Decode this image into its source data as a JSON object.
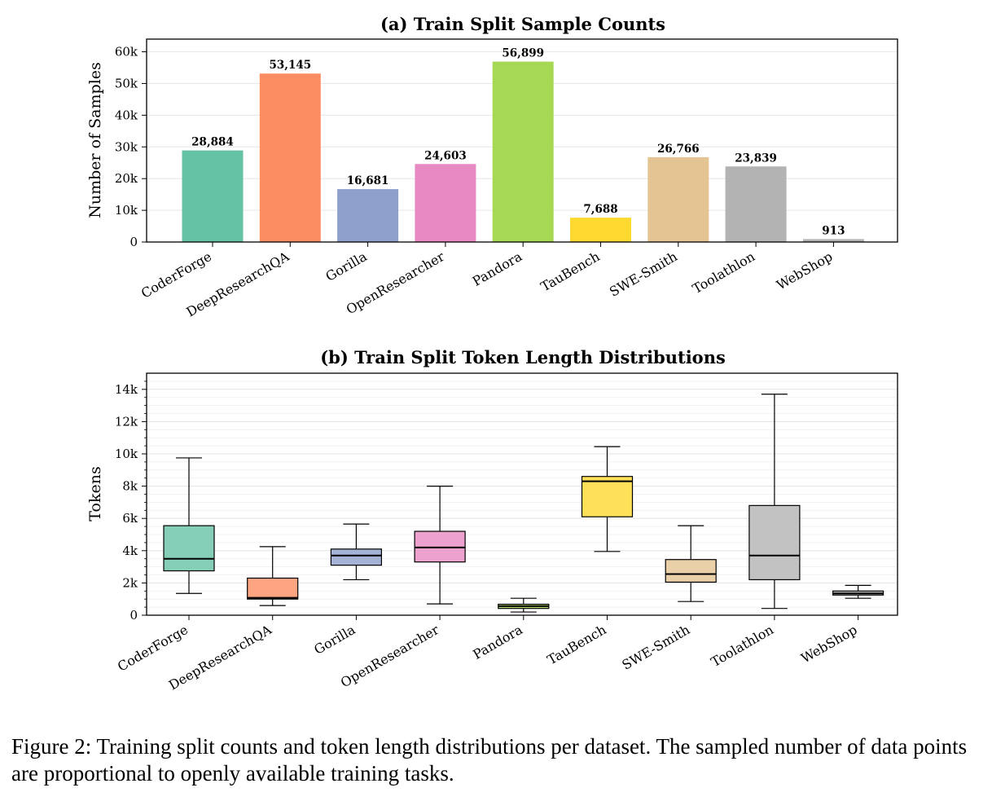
{
  "figure": {
    "caption": "Figure 2: Training split counts and token length distributions per dataset. The sampled number of data points are proportional to openly available training tasks."
  },
  "chart_data": [
    {
      "type": "bar",
      "title": "(a) Train Split Sample Counts",
      "xlabel": "",
      "ylabel": "Number of Samples",
      "ylim": [
        0,
        64000
      ],
      "yticks": [
        0,
        10000,
        20000,
        30000,
        40000,
        50000,
        60000
      ],
      "ytick_labels": [
        "0",
        "10k",
        "20k",
        "30k",
        "40k",
        "50k",
        "60k"
      ],
      "grid": true,
      "categories": [
        "CoderForge",
        "DeepResearchQA",
        "Gorilla",
        "OpenResearcher",
        "Pandora",
        "TauBench",
        "SWE-Smith",
        "Toolathlon",
        "WebShop"
      ],
      "values": [
        28884,
        53145,
        16681,
        24603,
        56899,
        7688,
        26766,
        23839,
        913
      ],
      "data_labels": [
        "28,884",
        "53,145",
        "16,681",
        "24,603",
        "56,899",
        "7,688",
        "26,766",
        "23,839",
        "913"
      ],
      "colors": [
        "#66c2a5",
        "#fc8d62",
        "#8da0cb",
        "#e78ac3",
        "#a6d854",
        "#ffd92f",
        "#e5c494",
        "#b3b3b3",
        "#b3b3b3"
      ]
    },
    {
      "type": "box",
      "title": "(b) Train Split Token Length Distributions",
      "xlabel": "",
      "ylabel": "Tokens",
      "ylim": [
        0,
        15000
      ],
      "yticks": [
        0,
        2000,
        4000,
        6000,
        8000,
        10000,
        12000,
        14000
      ],
      "ytick_labels": [
        "0",
        "2k",
        "4k",
        "6k",
        "8k",
        "10k",
        "12k",
        "14k"
      ],
      "grid": true,
      "categories": [
        "CoderForge",
        "DeepResearchQA",
        "Gorilla",
        "OpenResearcher",
        "Pandora",
        "TauBench",
        "SWE-Smith",
        "Toolathlon",
        "WebShop"
      ],
      "boxes": [
        {
          "whislo": 1350,
          "q1": 2750,
          "med": 3500,
          "q3": 5550,
          "whishi": 9750
        },
        {
          "whislo": 600,
          "q1": 1000,
          "med": 1080,
          "q3": 2300,
          "whishi": 4250
        },
        {
          "whislo": 2200,
          "q1": 3100,
          "med": 3700,
          "q3": 4100,
          "whishi": 5650
        },
        {
          "whislo": 700,
          "q1": 3300,
          "med": 4200,
          "q3": 5200,
          "whishi": 8000
        },
        {
          "whislo": 200,
          "q1": 420,
          "med": 560,
          "q3": 680,
          "whishi": 1050
        },
        {
          "whislo": 3950,
          "q1": 6100,
          "med": 8300,
          "q3": 8600,
          "whishi": 10450
        },
        {
          "whislo": 850,
          "q1": 2050,
          "med": 2550,
          "q3": 3450,
          "whishi": 5550
        },
        {
          "whislo": 420,
          "q1": 2200,
          "med": 3700,
          "q3": 6800,
          "whishi": 13700
        },
        {
          "whislo": 1050,
          "q1": 1250,
          "med": 1350,
          "q3": 1500,
          "whishi": 1850
        }
      ],
      "colors": [
        "#66c2a5",
        "#fc8d62",
        "#8da0cb",
        "#e78ac3",
        "#a6d854",
        "#ffd92f",
        "#e5c494",
        "#b3b3b3",
        "#b3b3b3"
      ]
    }
  ]
}
